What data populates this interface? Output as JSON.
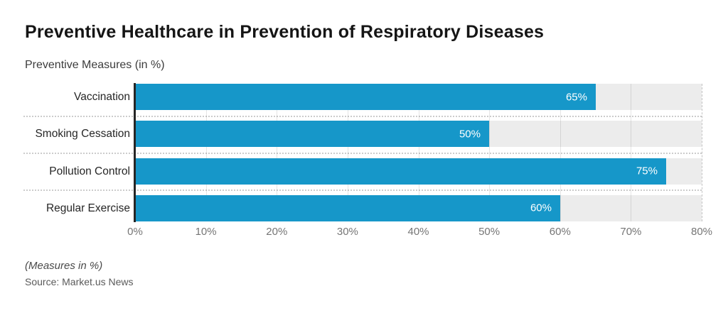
{
  "header": {
    "title": "Preventive Healthcare in Prevention of Respiratory Diseases",
    "subtitle": "Preventive Measures (in %)"
  },
  "footer": {
    "footnote": "(Measures in %)",
    "source": "Source: Market.us News"
  },
  "colors": {
    "bar": "#1697c9",
    "track": "#ececec",
    "axis_line": "#262626",
    "value_label": "#ffffff"
  },
  "chart_data": {
    "type": "bar",
    "orientation": "horizontal",
    "title": "Preventive Healthcare in Prevention of Respiratory Diseases",
    "subtitle": "Preventive Measures (in %)",
    "categories": [
      "Vaccination",
      "Smoking Cessation",
      "Pollution Control",
      "Regular Exercise"
    ],
    "values": [
      65,
      50,
      75,
      60
    ],
    "value_labels": [
      "65%",
      "50%",
      "75%",
      "60%"
    ],
    "xlabel": "",
    "ylabel": "Preventive Measures (in %)",
    "xlim": [
      0,
      80
    ],
    "xticks": [
      "0%",
      "10%",
      "20%",
      "30%",
      "40%",
      "50%",
      "60%",
      "70%",
      "80%"
    ],
    "grid": true,
    "legend": false,
    "value_labels_position": "inside-end"
  }
}
